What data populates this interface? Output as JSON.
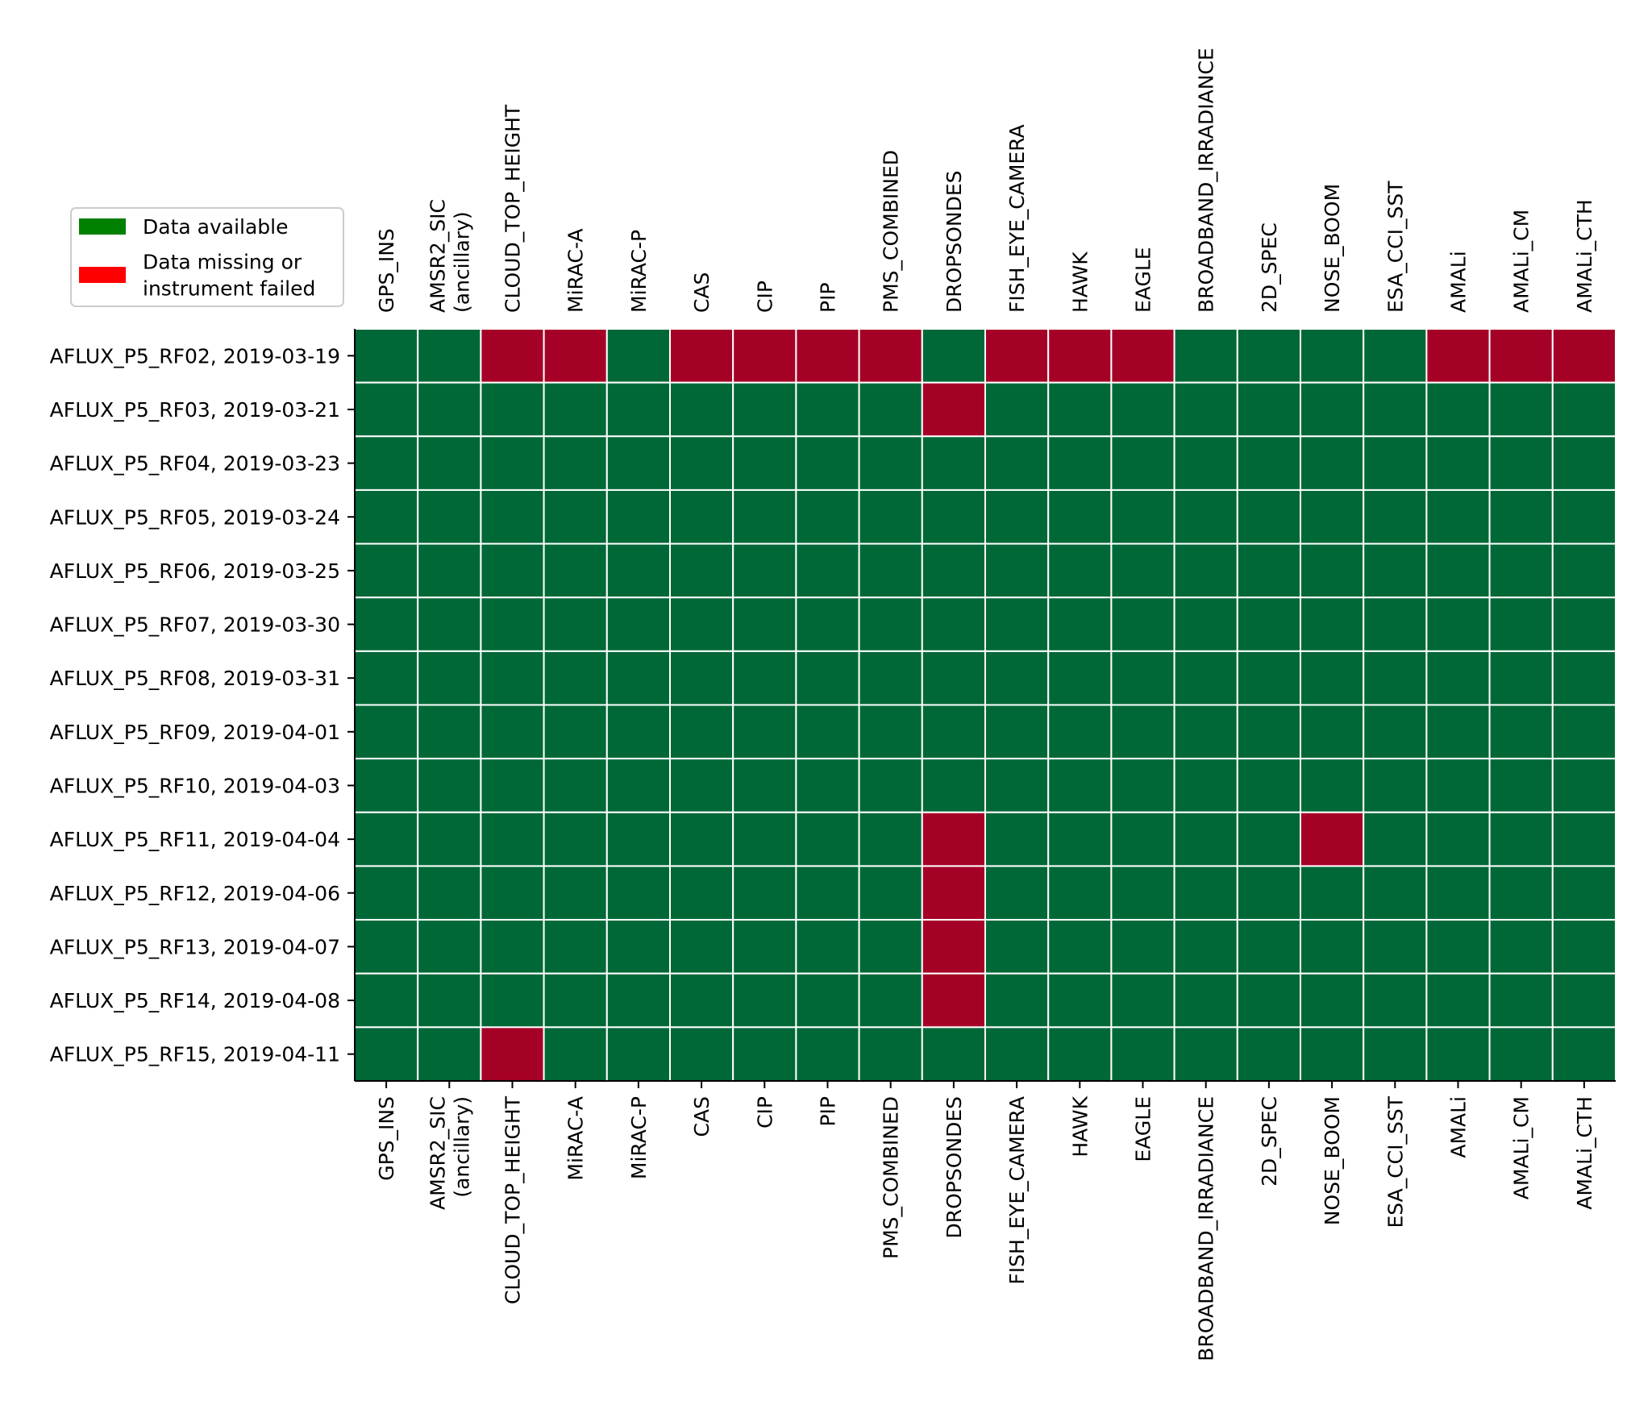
{
  "chart_data": {
    "type": "heatmap",
    "title": "",
    "xlabel": "",
    "ylabel": "",
    "grid": true,
    "legend_placement": "top-left",
    "colors": {
      "available_cell": "#006837",
      "missing_cell": "#a50026",
      "available_legend": "#008000",
      "missing_legend": "#ff0000",
      "cell_border": "#ffffff",
      "axis": "#000000"
    },
    "legend": [
      {
        "label_lines": [
          "Data available"
        ],
        "status": "available"
      },
      {
        "label_lines": [
          "Data missing or",
          "instrument failed"
        ],
        "status": "missing"
      }
    ],
    "columns": [
      {
        "lines": [
          "GPS_INS"
        ]
      },
      {
        "lines": [
          "AMSR2_SIC",
          "(ancillary)"
        ]
      },
      {
        "lines": [
          "CLOUD_TOP_HEIGHT"
        ]
      },
      {
        "lines": [
          "MiRAC-A"
        ]
      },
      {
        "lines": [
          "MiRAC-P"
        ]
      },
      {
        "lines": [
          "CAS"
        ]
      },
      {
        "lines": [
          "CIP"
        ]
      },
      {
        "lines": [
          "PIP"
        ]
      },
      {
        "lines": [
          "PMS_COMBINED"
        ]
      },
      {
        "lines": [
          "DROPSONDES"
        ]
      },
      {
        "lines": [
          "FISH_EYE_CAMERA"
        ]
      },
      {
        "lines": [
          "HAWK"
        ]
      },
      {
        "lines": [
          "EAGLE"
        ]
      },
      {
        "lines": [
          "BROADBAND_IRRADIANCE"
        ]
      },
      {
        "lines": [
          "2D_SPEC"
        ]
      },
      {
        "lines": [
          "NOSE_BOOM"
        ]
      },
      {
        "lines": [
          "ESA_CCI_SST"
        ]
      },
      {
        "lines": [
          "AMALi"
        ]
      },
      {
        "lines": [
          "AMALi_CM"
        ]
      },
      {
        "lines": [
          "AMALi_CTH"
        ]
      }
    ],
    "rows": [
      "AFLUX_P5_RF02, 2019-03-19",
      "AFLUX_P5_RF03, 2019-03-21",
      "AFLUX_P5_RF04, 2019-03-23",
      "AFLUX_P5_RF05, 2019-03-24",
      "AFLUX_P5_RF06, 2019-03-25",
      "AFLUX_P5_RF07, 2019-03-30",
      "AFLUX_P5_RF08, 2019-03-31",
      "AFLUX_P5_RF09, 2019-04-01",
      "AFLUX_P5_RF10, 2019-04-03",
      "AFLUX_P5_RF11, 2019-04-04",
      "AFLUX_P5_RF12, 2019-04-06",
      "AFLUX_P5_RF13, 2019-04-07",
      "AFLUX_P5_RF14, 2019-04-08",
      "AFLUX_P5_RF15, 2019-04-11"
    ],
    "values": [
      [
        1,
        1,
        0,
        0,
        1,
        0,
        0,
        0,
        0,
        1,
        0,
        0,
        0,
        1,
        1,
        1,
        1,
        0,
        0,
        0
      ],
      [
        1,
        1,
        1,
        1,
        1,
        1,
        1,
        1,
        1,
        0,
        1,
        1,
        1,
        1,
        1,
        1,
        1,
        1,
        1,
        1
      ],
      [
        1,
        1,
        1,
        1,
        1,
        1,
        1,
        1,
        1,
        1,
        1,
        1,
        1,
        1,
        1,
        1,
        1,
        1,
        1,
        1
      ],
      [
        1,
        1,
        1,
        1,
        1,
        1,
        1,
        1,
        1,
        1,
        1,
        1,
        1,
        1,
        1,
        1,
        1,
        1,
        1,
        1
      ],
      [
        1,
        1,
        1,
        1,
        1,
        1,
        1,
        1,
        1,
        1,
        1,
        1,
        1,
        1,
        1,
        1,
        1,
        1,
        1,
        1
      ],
      [
        1,
        1,
        1,
        1,
        1,
        1,
        1,
        1,
        1,
        1,
        1,
        1,
        1,
        1,
        1,
        1,
        1,
        1,
        1,
        1
      ],
      [
        1,
        1,
        1,
        1,
        1,
        1,
        1,
        1,
        1,
        1,
        1,
        1,
        1,
        1,
        1,
        1,
        1,
        1,
        1,
        1
      ],
      [
        1,
        1,
        1,
        1,
        1,
        1,
        1,
        1,
        1,
        1,
        1,
        1,
        1,
        1,
        1,
        1,
        1,
        1,
        1,
        1
      ],
      [
        1,
        1,
        1,
        1,
        1,
        1,
        1,
        1,
        1,
        1,
        1,
        1,
        1,
        1,
        1,
        1,
        1,
        1,
        1,
        1
      ],
      [
        1,
        1,
        1,
        1,
        1,
        1,
        1,
        1,
        1,
        0,
        1,
        1,
        1,
        1,
        1,
        0,
        1,
        1,
        1,
        1
      ],
      [
        1,
        1,
        1,
        1,
        1,
        1,
        1,
        1,
        1,
        0,
        1,
        1,
        1,
        1,
        1,
        1,
        1,
        1,
        1,
        1
      ],
      [
        1,
        1,
        1,
        1,
        1,
        1,
        1,
        1,
        1,
        0,
        1,
        1,
        1,
        1,
        1,
        1,
        1,
        1,
        1,
        1
      ],
      [
        1,
        1,
        1,
        1,
        1,
        1,
        1,
        1,
        1,
        0,
        1,
        1,
        1,
        1,
        1,
        1,
        1,
        1,
        1,
        1
      ],
      [
        1,
        1,
        0,
        1,
        1,
        1,
        1,
        1,
        1,
        1,
        1,
        1,
        1,
        1,
        1,
        1,
        1,
        1,
        1,
        1
      ]
    ],
    "value_meaning": {
      "1": "Data available",
      "0": "Data missing or instrument failed"
    }
  }
}
